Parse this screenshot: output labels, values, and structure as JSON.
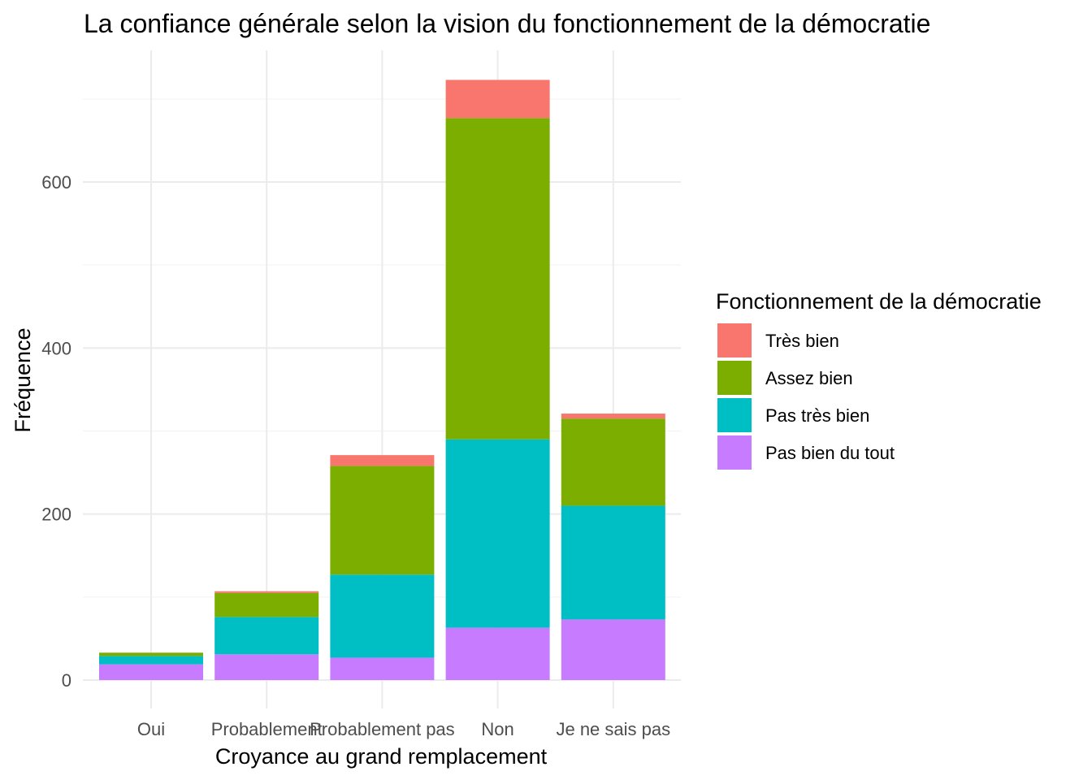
{
  "chart_data": {
    "type": "bar",
    "stacked": true,
    "title": "La confiance générale selon la vision du fonctionnement de la démocratie",
    "xlabel": "Croyance au grand remplacement",
    "ylabel": "Fréquence",
    "categories": [
      "Oui",
      "Probablement",
      "Probablement pas",
      "Non",
      "Je ne sais pas"
    ],
    "ylim": [
      0,
      740
    ],
    "yticks": [
      0,
      200,
      400,
      600
    ],
    "grid": true,
    "legend": {
      "title": "Fonctionnement de la démocratie",
      "position": "right"
    },
    "series": [
      {
        "name": "Pas bien du tout",
        "color": "#C77CFF",
        "values": [
          19,
          31,
          27,
          63,
          73
        ]
      },
      {
        "name": "Pas très bien",
        "color": "#00BFC4",
        "values": [
          10,
          45,
          100,
          227,
          137
        ]
      },
      {
        "name": "Assez bien",
        "color": "#7CAE00",
        "values": [
          4,
          29,
          131,
          387,
          105
        ]
      },
      {
        "name": "Très bien",
        "color": "#F8766D",
        "values": [
          0,
          2,
          13,
          46,
          6
        ]
      }
    ],
    "legend_order": [
      "Très bien",
      "Assez bien",
      "Pas très bien",
      "Pas bien du tout"
    ]
  }
}
